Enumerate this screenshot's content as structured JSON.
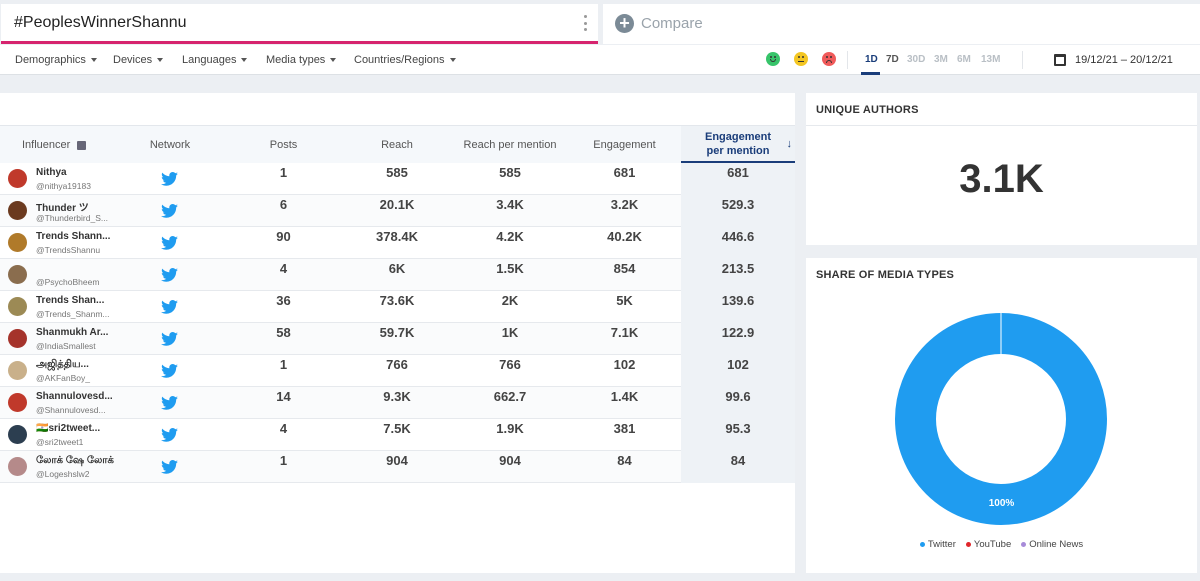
{
  "search": {
    "query": "#PeoplesWinnerShannu",
    "compare_label": "Compare"
  },
  "filters": [
    "Demographics",
    "Devices",
    "Languages",
    "Media types",
    "Countries/Regions"
  ],
  "ranges": [
    "1D",
    "7D",
    "30D",
    "3M",
    "6M",
    "13M"
  ],
  "active_range": "1D",
  "date_range": "19/12/21 – 20/12/21",
  "table": {
    "headers": {
      "influencer": "Influencer",
      "network": "Network",
      "posts": "Posts",
      "reach": "Reach",
      "reach_per_mention": "Reach per mention",
      "engagement": "Engagement",
      "engagement_per_mention": "Engagement per mention"
    },
    "rows": [
      {
        "name": "Nithya",
        "handle": "@nithya19183",
        "posts": "1",
        "reach": "585",
        "rpm": "585",
        "eng": "681",
        "epm": "681",
        "avatar": "#c0392b"
      },
      {
        "name": "Thunder ツ",
        "handle": "@Thunderbird_S...",
        "posts": "6",
        "reach": "20.1K",
        "rpm": "3.4K",
        "eng": "3.2K",
        "epm": "529.3",
        "avatar": "#6b3a1f"
      },
      {
        "name": "Trends Shann...",
        "handle": "@TrendsShannu",
        "posts": "90",
        "reach": "378.4K",
        "rpm": "4.2K",
        "eng": "40.2K",
        "epm": "446.6",
        "avatar": "#b07a2a"
      },
      {
        "name": "",
        "handle": "@PsychoBheem",
        "posts": "4",
        "reach": "6K",
        "rpm": "1.5K",
        "eng": "854",
        "epm": "213.5",
        "avatar": "#8a6d4e"
      },
      {
        "name": "Trends Shan...",
        "handle": "@Trends_Shanm...",
        "posts": "36",
        "reach": "73.6K",
        "rpm": "2K",
        "eng": "5K",
        "epm": "139.6",
        "avatar": "#9c8a55"
      },
      {
        "name": "Shanmukh Ar...",
        "handle": "@IndiaSmallest",
        "posts": "58",
        "reach": "59.7K",
        "rpm": "1K",
        "eng": "7.1K",
        "epm": "122.9",
        "avatar": "#a5332b"
      },
      {
        "name": "அஜித்திய...",
        "handle": "@AKFanBoy_",
        "posts": "1",
        "reach": "766",
        "rpm": "766",
        "eng": "102",
        "epm": "102",
        "avatar": "#c9b08a"
      },
      {
        "name": "Shannulovesd...",
        "handle": "@Shannulovesd...",
        "posts": "14",
        "reach": "9.3K",
        "rpm": "662.7",
        "eng": "1.4K",
        "epm": "99.6",
        "avatar": "#c0392b"
      },
      {
        "name": "🇮🇳sri2tweet...",
        "handle": "@sri2tweet1",
        "posts": "4",
        "reach": "7.5K",
        "rpm": "1.9K",
        "eng": "381",
        "epm": "95.3",
        "avatar": "#2c3e50"
      },
      {
        "name": "லோக் ஷே லோக்",
        "handle": "@Logeshslw2",
        "posts": "1",
        "reach": "904",
        "rpm": "904",
        "eng": "84",
        "epm": "84",
        "avatar": "#b58a8a"
      }
    ]
  },
  "unique_authors": {
    "title": "UNIQUE AUTHORS",
    "value": "3.1K"
  },
  "media_types": {
    "title": "SHARE OF MEDIA TYPES",
    "slice_label": "100%",
    "legend": [
      {
        "label": "Twitter",
        "color": "#1f9cf0"
      },
      {
        "label": "YouTube",
        "color": "#e0262b"
      },
      {
        "label": "Online News",
        "color": "#a78bd9"
      }
    ]
  },
  "chart_data": {
    "type": "pie",
    "title": "SHARE OF MEDIA TYPES",
    "categories": [
      "Twitter",
      "YouTube",
      "Online News"
    ],
    "values": [
      100,
      0,
      0
    ],
    "legend_position": "bottom"
  },
  "colors": {
    "accent": "#1a3d7a",
    "query_underline": "#d6246e",
    "twitter": "#1f9cf0"
  }
}
